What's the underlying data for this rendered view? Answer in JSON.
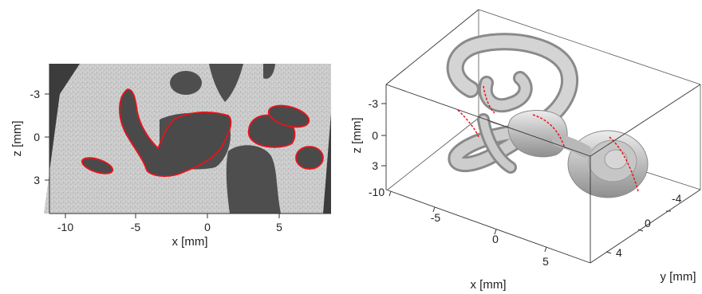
{
  "left_panel": {
    "xlabel": "x [mm]",
    "zlabel": "z [mm]",
    "x_ticks": [
      "-10",
      "-5",
      "0",
      "5"
    ],
    "z_ticks": [
      "-3",
      "0",
      "3"
    ]
  },
  "right_panel": {
    "xlabel": "x [mm]",
    "ylabel": "y [mm]",
    "zlabel": "z [mm]",
    "x_ticks": [
      "-10",
      "-5",
      "0",
      "5"
    ],
    "y_ticks": [
      "-4",
      "0",
      "4"
    ],
    "z_ticks": [
      "-3",
      "0",
      "3"
    ]
  },
  "colors": {
    "segmentation_outline": "#e8141b",
    "ct_tissue": "#c9c9c9",
    "ct_air": "#505050",
    "surface_render": "#bdbdbd"
  }
}
